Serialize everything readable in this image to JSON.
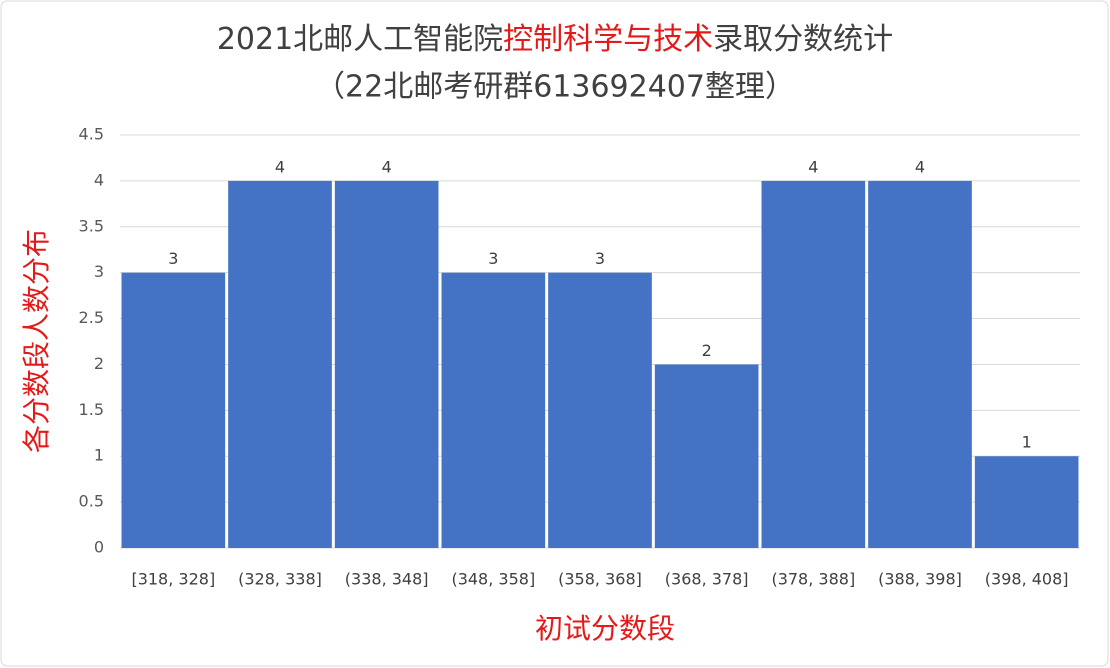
{
  "chart_data": {
    "type": "bar",
    "title": [
      "2021北邮人工智能院",
      "控制科学与技术",
      "录取分数统计"
    ],
    "subtitle": "（22北邮考研群613692407整理）",
    "x_label": "初试分数段",
    "y_label": "各分数段人数分布",
    "categories": [
      "[318, 328]",
      "(328, 338]",
      "(338, 348]",
      "(348, 358]",
      "(358, 368]",
      "(368, 378]",
      "(378, 388]",
      "(388, 398]",
      "(398, 408]"
    ],
    "values": [
      3,
      4,
      4,
      3,
      3,
      2,
      4,
      4,
      1
    ],
    "color": "#4472c4",
    "accent_color": "#e41a1a",
    "ylim": [
      0,
      4.5
    ],
    "yticks": [
      0,
      0.5,
      1,
      1.5,
      2,
      2.5,
      3,
      3.5,
      4,
      4.5
    ],
    "grid": true
  }
}
